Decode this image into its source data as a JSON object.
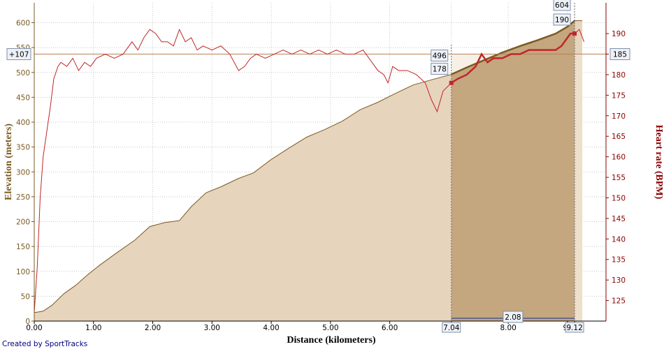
{
  "chart_data": {
    "type": "area",
    "xlabel": "Distance (kilometers)",
    "ylabel_left": "Elevation (meters)",
    "ylabel_right": "Heart rate (BPM)",
    "xlim": [
      0,
      9.65
    ],
    "ylim_left": [
      0,
      640
    ],
    "ylim_right": [
      120,
      197.5
    ],
    "x_ticks": [
      "0.00",
      "1.00",
      "2.00",
      "3.00",
      "4.00",
      "5.00",
      "6.00",
      "7.04",
      "8.00",
      "9",
      "9.12"
    ],
    "y_left_ticks": [
      0,
      50,
      100,
      150,
      200,
      250,
      300,
      350,
      400,
      450,
      500,
      550,
      600
    ],
    "y_right_ticks": [
      125,
      130,
      135,
      140,
      145,
      150,
      155,
      160,
      165,
      170,
      175,
      180,
      185,
      190
    ],
    "grid": true,
    "colors": {
      "elevation_fill": "#e6d4bd",
      "elevation_line": "#7a5a20",
      "selected_fill": "#c4a67f",
      "heart_rate": "#c0262a",
      "left_axis": "#7a5a20",
      "right_axis": "#8b0000"
    },
    "series": [
      {
        "name": "Elevation",
        "axis": "left",
        "x": [
          0.0,
          0.15,
          0.3,
          0.5,
          0.7,
          0.9,
          1.1,
          1.4,
          1.7,
          1.95,
          2.2,
          2.45,
          2.65,
          2.9,
          3.15,
          3.45,
          3.7,
          4.0,
          4.3,
          4.6,
          4.9,
          5.2,
          5.5,
          5.8,
          6.1,
          6.4,
          6.7,
          7.04,
          7.3,
          7.6,
          7.9,
          8.2,
          8.5,
          8.8,
          9.0,
          9.12,
          9.25
        ],
        "y": [
          17,
          20,
          32,
          55,
          72,
          93,
          112,
          138,
          163,
          190,
          198,
          202,
          230,
          258,
          270,
          287,
          298,
          325,
          348,
          370,
          385,
          402,
          425,
          440,
          458,
          475,
          485,
          496,
          510,
          525,
          540,
          553,
          565,
          578,
          592,
          604,
          604
        ]
      },
      {
        "name": "Heart rate",
        "axis": "right",
        "x": [
          0.0,
          0.05,
          0.1,
          0.15,
          0.2,
          0.27,
          0.33,
          0.4,
          0.45,
          0.55,
          0.65,
          0.75,
          0.85,
          0.95,
          1.05,
          1.2,
          1.35,
          1.5,
          1.65,
          1.75,
          1.85,
          1.95,
          2.05,
          2.15,
          2.25,
          2.35,
          2.45,
          2.55,
          2.65,
          2.75,
          2.85,
          3.0,
          3.15,
          3.3,
          3.45,
          3.55,
          3.65,
          3.75,
          3.9,
          4.05,
          4.2,
          4.35,
          4.5,
          4.65,
          4.8,
          4.95,
          5.1,
          5.25,
          5.4,
          5.55,
          5.7,
          5.8,
          5.9,
          5.97,
          6.05,
          6.15,
          6.3,
          6.45,
          6.6,
          6.7,
          6.8,
          6.9,
          7.04,
          7.15,
          7.3,
          7.45,
          7.55,
          7.65,
          7.75,
          7.9,
          8.05,
          8.2,
          8.35,
          8.5,
          8.65,
          8.8,
          8.9,
          9.0,
          9.05,
          9.12,
          9.2,
          9.28
        ],
        "y": [
          122,
          133,
          150,
          160,
          165,
          172,
          179,
          182,
          183,
          182,
          184,
          181,
          183,
          182,
          184,
          185,
          184,
          185,
          188,
          186,
          189,
          191,
          190,
          188,
          188,
          187,
          191,
          188,
          189,
          186,
          187,
          186,
          187,
          185,
          181,
          182,
          184,
          185,
          184,
          185,
          186,
          185,
          186,
          185,
          186,
          185,
          186,
          185,
          185,
          186,
          183,
          181,
          180,
          178,
          182,
          181,
          181,
          180,
          178,
          174,
          171,
          176,
          178,
          179,
          180,
          182,
          185,
          183,
          184,
          184,
          185,
          185,
          186,
          186,
          186,
          186,
          187,
          189,
          190,
          190,
          191,
          188
        ]
      }
    ],
    "selection": {
      "x_start": 7.04,
      "x_end": 9.12,
      "width_label": "2.08",
      "start_elevation": "496",
      "start_hr": "178",
      "end_elevation": "604",
      "end_hr": "190",
      "elevation_gain_label": "+107",
      "hr_reference_label": "185",
      "hr_reference_value": 185
    },
    "credit": "Created by SportTracks"
  }
}
